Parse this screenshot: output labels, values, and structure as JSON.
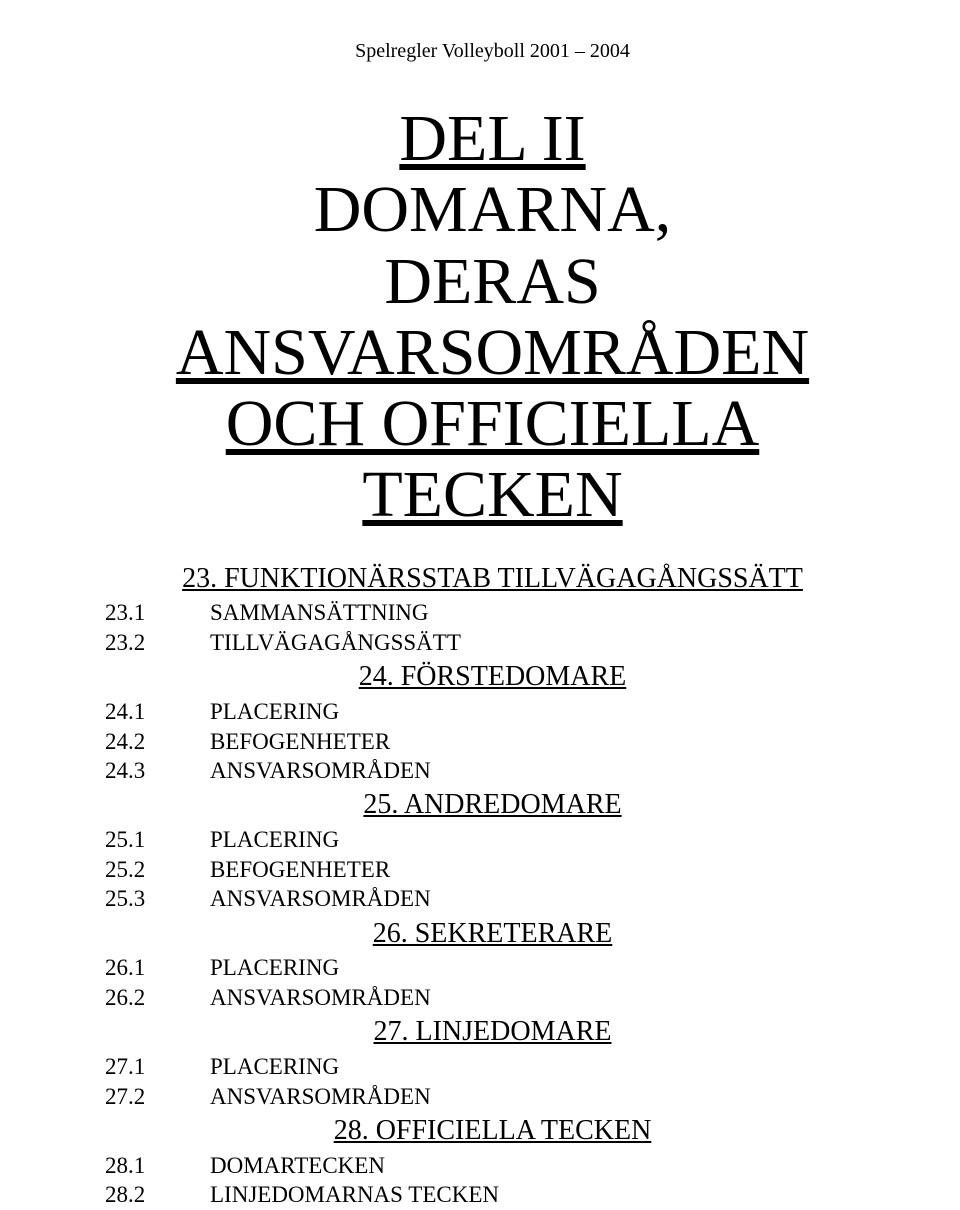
{
  "header": "Spelregler Volleyboll   2001 – 2004",
  "title": {
    "line1": "DEL II",
    "line2": "DOMARNA,",
    "line3": "DERAS",
    "line4": "ANSVARSOMRÅDEN",
    "line5": "OCH OFFICIELLA TECKEN"
  },
  "sections": [
    {
      "heading": "23.   FUNKTIONÄRSSTAB TILLVÄGAGÅNGSSÄTT",
      "items": [
        {
          "num": "23.1",
          "label": "SAMMANSÄTTNING"
        },
        {
          "num": "23.2",
          "label": "TILLVÄGAGÅNGSSÄTT"
        }
      ]
    },
    {
      "heading": "24.   FÖRSTEDOMARE",
      "items": [
        {
          "num": "24.1",
          "label": "PLACERING"
        },
        {
          "num": "24.2",
          "label": "BEFOGENHETER"
        },
        {
          "num": "24.3",
          "label": "ANSVARSOMRÅDEN"
        }
      ]
    },
    {
      "heading": "25.   ANDREDOMARE",
      "items": [
        {
          "num": "25.1",
          "label": "PLACERING"
        },
        {
          "num": "25.2",
          "label": "BEFOGENHETER"
        },
        {
          "num": "25.3",
          "label": "ANSVARSOMRÅDEN"
        }
      ]
    },
    {
      "heading": "26.   SEKRETERARE",
      "items": [
        {
          "num": "26.1",
          "label": "PLACERING"
        },
        {
          "num": "26.2",
          "label": "ANSVARSOMRÅDEN"
        }
      ]
    },
    {
      "heading": "27.   LINJEDOMARE",
      "items": [
        {
          "num": "27.1",
          "label": "PLACERING"
        },
        {
          "num": "27.2",
          "label": "ANSVARSOMRÅDEN"
        }
      ]
    },
    {
      "heading": "28.   OFFICIELLA TECKEN",
      "items": [
        {
          "num": "28.1",
          "label": "DOMARTECKEN"
        },
        {
          "num": "28.2",
          "label": "LINJEDOMARNAS TECKEN"
        }
      ]
    }
  ]
}
